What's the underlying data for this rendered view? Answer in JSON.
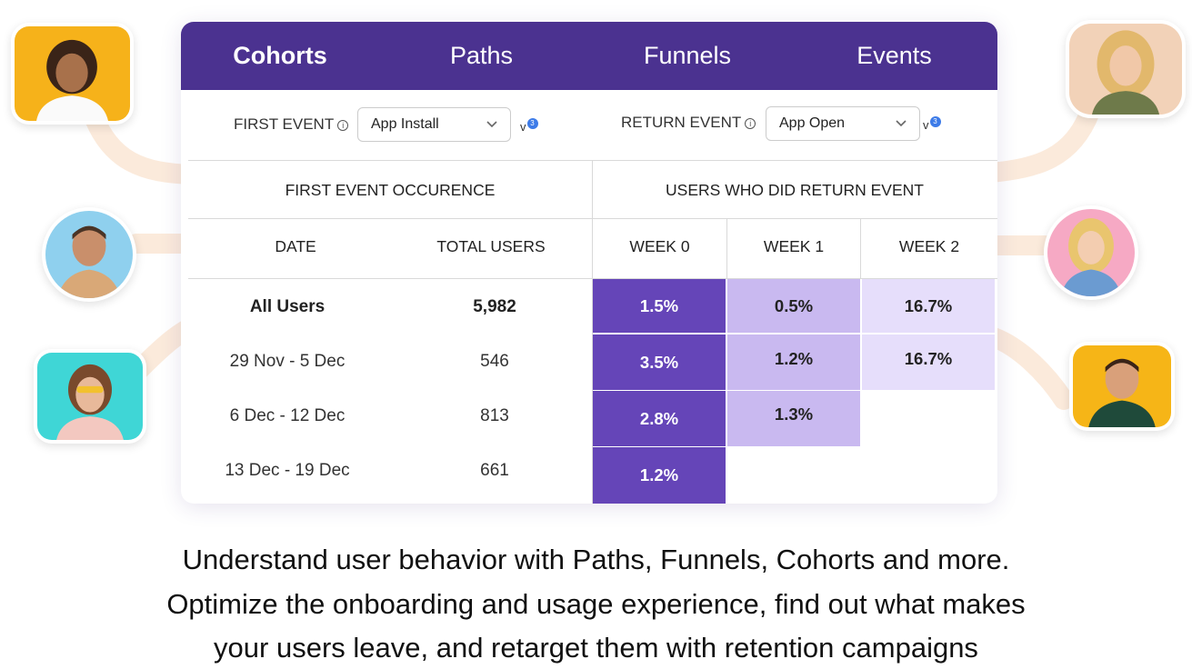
{
  "tabs": [
    {
      "label": "Cohorts",
      "active": true
    },
    {
      "label": "Paths",
      "active": false
    },
    {
      "label": "Funnels",
      "active": false
    },
    {
      "label": "Events",
      "active": false
    }
  ],
  "filters": {
    "first_event_label": "FIRST EVENT",
    "first_event_value": "App Install",
    "first_version_letter": "v",
    "first_version_badge": "3",
    "return_event_label": "RETURN EVENT",
    "return_event_value": "App Open",
    "return_version_letter": "v",
    "return_version_badge": "3"
  },
  "table": {
    "group_headers": [
      "FIRST EVENT OCCURENCE",
      "USERS WHO DID RETURN EVENT"
    ],
    "columns": [
      "DATE",
      "TOTAL USERS",
      "WEEK 0",
      "WEEK 1",
      "WEEK 2"
    ],
    "rows": [
      {
        "date": "All Users",
        "total": "5,982",
        "weeks": [
          "1.5%",
          "0.5%",
          "16.7%"
        ],
        "bold": true
      },
      {
        "date": "29 Nov - 5 Dec",
        "total": "546",
        "weeks": [
          "3.5%",
          "1.2%",
          "16.7%"
        ]
      },
      {
        "date": "6 Dec - 12 Dec",
        "total": "813",
        "weeks": [
          "2.8%",
          "1.3%"
        ]
      },
      {
        "date": "13 Dec - 19 Dec",
        "total": "661",
        "weeks": [
          "1.2%"
        ]
      }
    ],
    "heat_colors": [
      "#6545b8",
      "#c9b9f0",
      "#e6defb"
    ]
  },
  "caption": {
    "line1": "Understand user behavior with Paths, Funnels, Cohorts and more.",
    "line2": "Optimize the onboarding and usage experience, find out what makes",
    "line3": "your users leave, and retarget them with retention campaigns"
  },
  "colors": {
    "brand": "#4b3290",
    "accent_badge": "#3d7be8"
  }
}
